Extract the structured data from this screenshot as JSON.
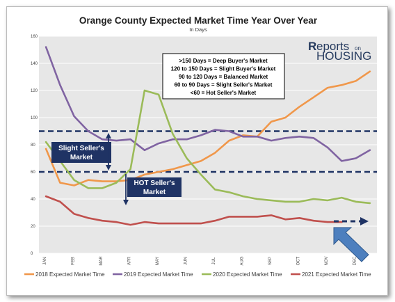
{
  "chart_data": {
    "type": "line",
    "title": "Orange County Expected Market Time Year Over Year",
    "subtitle": "In Days",
    "xlabel": "",
    "ylabel": "",
    "ylim": [
      0,
      160
    ],
    "yticks": [
      0,
      20,
      40,
      60,
      80,
      100,
      120,
      140,
      160
    ],
    "grid": true,
    "legend_placement": "bottom",
    "x_tick_labels": [
      "JAN",
      "FEB",
      "MAR",
      "APR",
      "MAY",
      "JUN",
      "JUL",
      "AUG",
      "SEP",
      "OCT",
      "NOV",
      "DEC"
    ],
    "x": [
      1,
      1.5,
      2,
      2.5,
      3,
      3.5,
      4,
      4.5,
      5,
      5.5,
      6,
      6.5,
      7,
      7.5,
      8,
      8.5,
      9,
      9.5,
      10,
      10.5,
      11,
      11.5,
      12,
      12.5
    ],
    "series": [
      {
        "name": "2018 Expected Market Time",
        "color": "#f0974a",
        "values": [
          77,
          52,
          50,
          54,
          53,
          53,
          54,
          58,
          60,
          62,
          65,
          68,
          74,
          83,
          87,
          86,
          97,
          100,
          108,
          115,
          122,
          124,
          127,
          134
        ]
      },
      {
        "name": "2019 Expected Market Time",
        "color": "#8064a2",
        "values": [
          152,
          124,
          101,
          90,
          84,
          83,
          84,
          76,
          81,
          84,
          84,
          87,
          91,
          90,
          86,
          86,
          83,
          85,
          86,
          85,
          78,
          68,
          70,
          76
        ]
      },
      {
        "name": "2020 Expected Market Time",
        "color": "#9bbb59",
        "values": [
          82,
          68,
          54,
          48,
          48,
          52,
          62,
          120,
          117,
          88,
          70,
          58,
          47,
          45,
          42,
          40,
          39,
          38,
          38,
          40,
          39,
          41,
          38,
          37
        ]
      },
      {
        "name": "2021 Expected Market Time",
        "color": "#c0504d",
        "values": [
          42,
          38,
          29,
          26,
          24,
          23,
          21,
          23,
          22,
          22,
          22,
          22,
          24,
          27,
          27,
          27,
          28,
          25,
          26,
          24,
          23,
          23,
          null,
          null
        ]
      }
    ],
    "reference_lines": [
      {
        "value": 90,
        "style": "dashed",
        "color": "#1f3364"
      },
      {
        "value": 60,
        "style": "dashed",
        "color": "#1f3364"
      }
    ],
    "annotations": {
      "slight_seller_label": "Slight Seller's Market",
      "hot_seller_label": "HOT Seller's Market"
    }
  },
  "key_box": {
    "lines": [
      ">150 Days  =  Deep Buyer's Market",
      "120 to 150 Days  =  Slight Buyer's Market",
      "90 to 120 Days  =  Balanced Market",
      "60 to 90 Days  =  Slight Seller's Market",
      "<60  =  Hot Seller's Market"
    ]
  },
  "logo": {
    "top_left": "R",
    "top_mid": "eports",
    "top_right": "on",
    "bottom": "HOUSING"
  },
  "colors": {
    "plot_bg": "#e7e7e7",
    "band_box": "#1f3364",
    "arrow_blue": "#4d7fbe",
    "gridline": "#ffffff"
  }
}
